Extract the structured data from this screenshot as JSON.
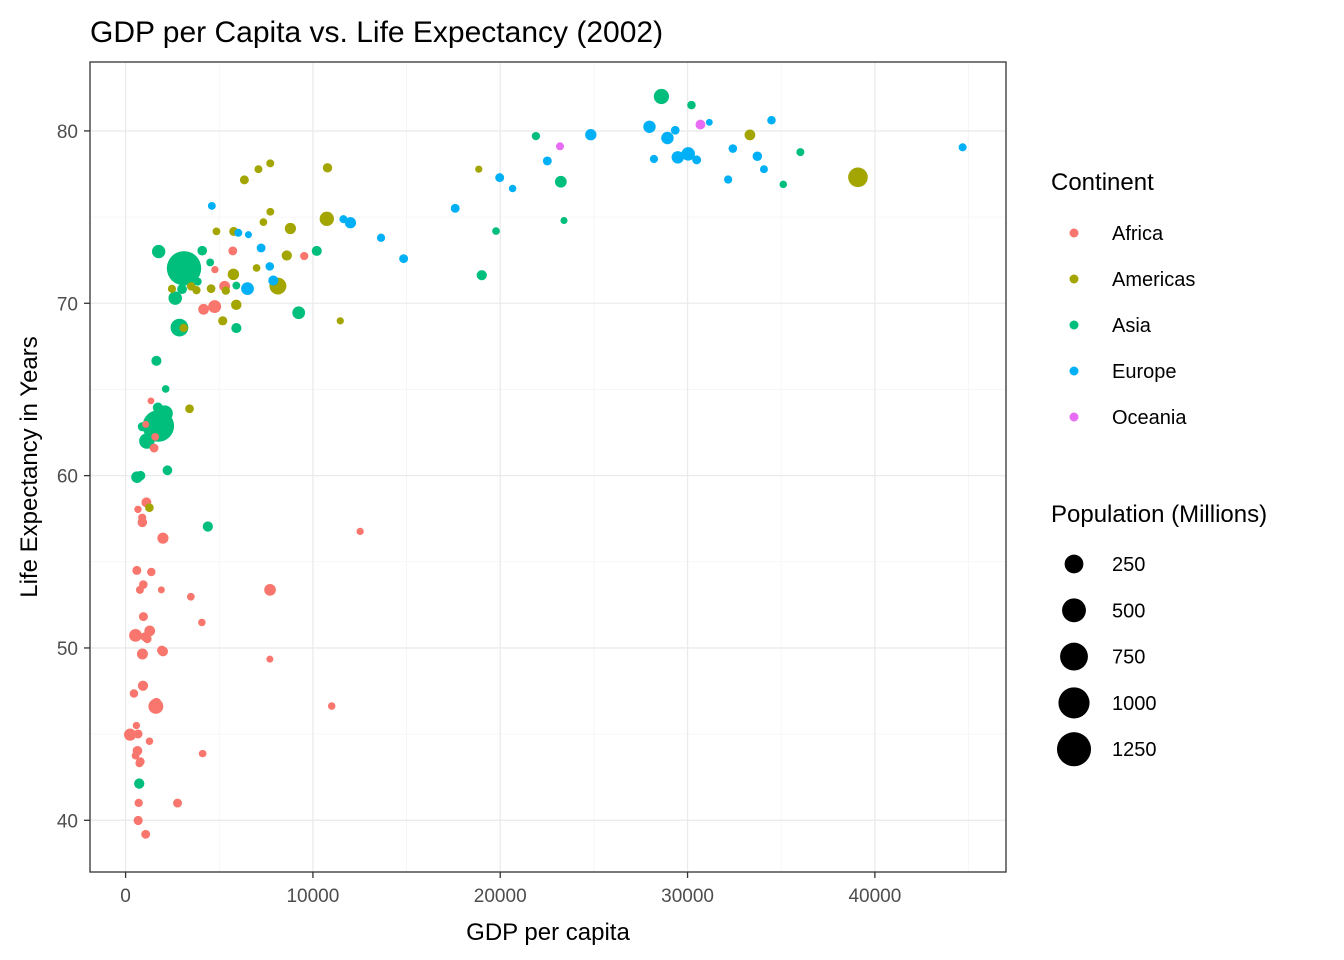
{
  "chart_data": {
    "type": "scatter",
    "title": "GDP per Capita vs. Life Expectancy (2002)",
    "xlabel": "GDP per capita",
    "ylabel": "Life Expectancy in Years",
    "xlim": [
      -1900,
      47000
    ],
    "ylim": [
      37,
      84
    ],
    "x_ticks": [
      0,
      10000,
      20000,
      30000,
      40000
    ],
    "x_tick_labels": [
      "0",
      "10000",
      "20000",
      "30000",
      "40000"
    ],
    "y_ticks": [
      40,
      50,
      60,
      70,
      80
    ],
    "y_tick_labels": [
      "40",
      "50",
      "60",
      "70",
      "80"
    ],
    "grid": true,
    "legend": {
      "placement": "right",
      "color_title": "Continent",
      "continents": [
        {
          "name": "Africa",
          "color": "#F8766D"
        },
        {
          "name": "Americas",
          "color": "#A3A500"
        },
        {
          "name": "Asia",
          "color": "#00BF7D"
        },
        {
          "name": "Europe",
          "color": "#00B0F6"
        },
        {
          "name": "Oceania",
          "color": "#E76BF3"
        }
      ],
      "size_title": "Population (Millions)",
      "sizes": [
        {
          "label": "250",
          "value": 250
        },
        {
          "label": "500",
          "value": 500
        },
        {
          "label": "750",
          "value": 750
        },
        {
          "label": "1000",
          "value": 1000
        },
        {
          "label": "1250",
          "value": 1250
        }
      ]
    },
    "series": [
      {
        "name": "Africa",
        "color": "#F8766D",
        "points": [
          [
            5288,
            70.99,
            31
          ],
          [
            2773,
            41.0,
            10
          ],
          [
            1373,
            54.41,
            7
          ],
          [
            11004,
            46.63,
            2
          ],
          [
            1038,
            50.65,
            12
          ],
          [
            446,
            47.36,
            7
          ],
          [
            1934,
            49.86,
            16
          ],
          [
            4755,
            69.81,
            0.5
          ],
          [
            739,
            43.31,
            4
          ],
          [
            1156,
            50.53,
            9
          ],
          [
            1076,
            62.97,
            0.6
          ],
          [
            241,
            44.97,
            55
          ],
          [
            3484,
            52.97,
            3
          ],
          [
            1648,
            46.83,
            16
          ],
          [
            1909,
            53.37,
            0.5
          ],
          [
            4755,
            69.81,
            70
          ],
          [
            7703,
            49.35,
            0.5
          ],
          [
            765,
            53.37,
            4
          ],
          [
            530,
            50.73,
            67
          ],
          [
            12521,
            56.76,
            1.3
          ],
          [
            661,
            58.04,
            1.5
          ],
          [
            1111,
            58.45,
            20
          ],
          [
            946,
            53.68,
            8
          ],
          [
            575,
            45.5,
            1.4
          ],
          [
            1287,
            50.99,
            31
          ],
          [
            1275,
            44.59,
            2
          ],
          [
            531,
            43.75,
            3
          ],
          [
            9535,
            72.74,
            5.4
          ],
          [
            894,
            57.29,
            16
          ],
          [
            665,
            45.01,
            11
          ],
          [
            951,
            51.82,
            11
          ],
          [
            1579,
            62.25,
            2.8
          ],
          [
            4768,
            71.95,
            1.2
          ],
          [
            4164,
            69.65,
            31
          ],
          [
            634,
            44.03,
            18
          ],
          [
            4072,
            51.48,
            2
          ],
          [
            601,
            54.5,
            11
          ],
          [
            1615,
            46.61,
            119
          ],
          [
            786,
            43.41,
            8
          ],
          [
            1353,
            64.34,
            0.2
          ],
          [
            1520,
            61.6,
            10
          ],
          [
            699,
            41.01,
            6
          ],
          [
            4098,
            43.87,
            1
          ],
          [
            7711,
            53.37,
            45
          ],
          [
            1993,
            56.37,
            37
          ],
          [
            4128,
            43.87,
            1.1
          ],
          [
            899,
            49.65,
            34
          ],
          [
            886,
            57.56,
            5
          ],
          [
            5723,
            73.04,
            10
          ],
          [
            928,
            47.81,
            24
          ],
          [
            1072,
            39.19,
            10
          ],
          [
            672,
            39.99,
            12
          ],
          [
            2000,
            49.8,
            20
          ]
        ]
      },
      {
        "name": "Americas",
        "color": "#A3A500",
        "points": [
          [
            8798,
            74.34,
            38
          ],
          [
            3413,
            63.88,
            8.5
          ],
          [
            8131,
            71.0,
            180
          ],
          [
            33329,
            79.77,
            31
          ],
          [
            10779,
            77.86,
            15
          ],
          [
            5755,
            71.68,
            41
          ],
          [
            7723,
            78.12,
            4
          ],
          [
            6341,
            77.16,
            11
          ],
          [
            4564,
            70.85,
            8.6
          ],
          [
            5773,
            74.17,
            12
          ],
          [
            5351,
            70.73,
            6
          ],
          [
            5186,
            68.98,
            12
          ],
          [
            3505,
            70.98,
            7.5
          ],
          [
            1270,
            58.14,
            8
          ],
          [
            3099,
            68.57,
            6.5
          ],
          [
            6995,
            72.05,
            2.6
          ],
          [
            10742,
            74.9,
            102
          ],
          [
            2474,
            70.84,
            5
          ],
          [
            7357,
            74.71,
            3
          ],
          [
            3784,
            70.76,
            5.9
          ],
          [
            5909,
            69.91,
            27
          ],
          [
            7092,
            77.78,
            3.9
          ],
          [
            18855,
            77.78,
            1.1
          ],
          [
            33329,
            79.77,
            18
          ],
          [
            7727,
            75.31,
            3.4
          ],
          [
            8605,
            72.77,
            24
          ],
          [
            39097,
            77.31,
            287
          ],
          [
            11460,
            68.98,
            1.1
          ],
          [
            4852,
            74.17,
            3
          ]
        ]
      },
      {
        "name": "Asia",
        "color": "#00BF7D",
        "points": [
          [
            727,
            42.13,
            25
          ],
          [
            23404,
            74.8,
            0.7
          ],
          [
            1136,
            62.01,
            135
          ],
          [
            896,
            62.84,
            12.9
          ],
          [
            3119,
            72.03,
            1280
          ],
          [
            30209,
            81.5,
            7
          ],
          [
            1747,
            62.88,
            1034
          ],
          [
            2874,
            68.59,
            211
          ],
          [
            9241,
            69.45,
            66
          ],
          [
            4391,
            57.05,
            24
          ],
          [
            21905,
            79.7,
            6
          ],
          [
            28605,
            82.0,
            127
          ],
          [
            3845,
            71.26,
            5.3
          ],
          [
            1646,
            66.66,
            22
          ],
          [
            23235,
            77.05,
            47
          ],
          [
            35110,
            76.9,
            2.1
          ],
          [
            5912,
            71.03,
            3.7
          ],
          [
            10206,
            73.04,
            22
          ],
          [
            2140,
            65.03,
            2.7
          ],
          [
            611,
            59.91,
            45
          ],
          [
            1726,
            63.94,
            25
          ],
          [
            19775,
            74.19,
            2.7
          ],
          [
            2093,
            63.61,
            153
          ],
          [
            2650,
            70.3,
            82
          ],
          [
            19014,
            71.63,
            24
          ],
          [
            36023,
            78.77,
            4.2
          ],
          [
            3015,
            70.82,
            19
          ],
          [
            4091,
            73.05,
            17
          ],
          [
            5914,
            68.56,
            23
          ],
          [
            1764,
            73.02,
            62
          ],
          [
            4515,
            72.37,
            3.4
          ],
          [
            2234,
            60.31,
            18
          ],
          [
            1765,
            73.0,
            80
          ],
          [
            800,
            60.0,
            15
          ]
        ]
      },
      {
        "name": "Europe",
        "color": "#00B0F6",
        "points": [
          [
            4604,
            75.65,
            3.5
          ],
          [
            32418,
            78.98,
            8.1
          ],
          [
            30486,
            78.32,
            10.3
          ],
          [
            6018,
            74.09,
            4
          ],
          [
            7697,
            72.14,
            7.7
          ],
          [
            11628,
            74.88,
            4.5
          ],
          [
            17596,
            75.51,
            10.3
          ],
          [
            32167,
            77.18,
            5.4
          ],
          [
            28205,
            78.37,
            5.2
          ],
          [
            28926,
            79.59,
            59.9
          ],
          [
            30036,
            78.67,
            82.4
          ],
          [
            22514,
            78.26,
            10.6
          ],
          [
            14843,
            72.59,
            10.1
          ],
          [
            31163,
            80.5,
            0.3
          ],
          [
            34077,
            77.78,
            3.9
          ],
          [
            27968,
            80.24,
            57.9
          ],
          [
            6557,
            73.98,
            0.7
          ],
          [
            33725,
            78.53,
            16.1
          ],
          [
            44684,
            79.05,
            4.5
          ],
          [
            12002,
            74.67,
            38.6
          ],
          [
            19971,
            77.29,
            10.4
          ],
          [
            7885,
            71.32,
            22.4
          ],
          [
            7236,
            73.21,
            10.1
          ],
          [
            13638,
            73.8,
            5.4
          ],
          [
            20660,
            76.66,
            2
          ],
          [
            24835,
            79.78,
            40.2
          ],
          [
            29342,
            80.04,
            8.9
          ],
          [
            34481,
            80.62,
            7.4
          ],
          [
            6508,
            70.85,
            67.3
          ],
          [
            29479,
            78.47,
            59.9
          ]
        ]
      },
      {
        "name": "Oceania",
        "color": "#E76BF3",
        "points": [
          [
            30688,
            80.37,
            19.5
          ],
          [
            23190,
            79.11,
            3.9
          ]
        ]
      }
    ]
  }
}
